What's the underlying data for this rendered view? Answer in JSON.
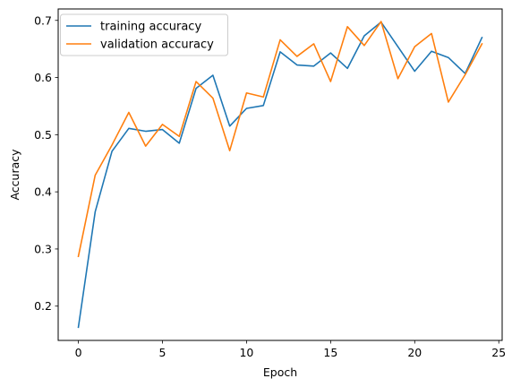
{
  "chart_data": {
    "type": "line",
    "title": "",
    "xlabel": "Epoch",
    "ylabel": "Accuracy",
    "xlim": [
      -1.2,
      25.2
    ],
    "ylim": [
      0.14,
      0.72
    ],
    "x_ticks": [
      0,
      5,
      10,
      15,
      20,
      25
    ],
    "y_ticks": [
      0.2,
      0.3,
      0.4,
      0.5,
      0.6,
      0.7
    ],
    "y_tick_labels": [
      "0.2",
      "0.3",
      "0.4",
      "0.5",
      "0.6",
      "0.7"
    ],
    "grid": false,
    "legend": "top-left",
    "x": [
      0,
      1,
      2,
      3,
      4,
      5,
      6,
      7,
      8,
      9,
      10,
      11,
      12,
      13,
      14,
      15,
      16,
      17,
      18,
      19,
      20,
      21,
      22,
      23,
      24
    ],
    "series": [
      {
        "name": "training accuracy",
        "color": "#1f77b4",
        "values": [
          0.163,
          0.365,
          0.471,
          0.511,
          0.506,
          0.509,
          0.485,
          0.581,
          0.604,
          0.515,
          0.546,
          0.551,
          0.645,
          0.622,
          0.62,
          0.643,
          0.616,
          0.673,
          0.697,
          0.654,
          0.611,
          0.646,
          0.635,
          0.607,
          0.67
        ]
      },
      {
        "name": "validation accuracy",
        "color": "#ff7f0e",
        "values": [
          0.287,
          0.429,
          0.482,
          0.539,
          0.48,
          0.518,
          0.497,
          0.593,
          0.564,
          0.472,
          0.573,
          0.566,
          0.666,
          0.637,
          0.659,
          0.593,
          0.689,
          0.656,
          0.698,
          0.598,
          0.654,
          0.677,
          0.557,
          0.605,
          0.659
        ]
      }
    ]
  }
}
